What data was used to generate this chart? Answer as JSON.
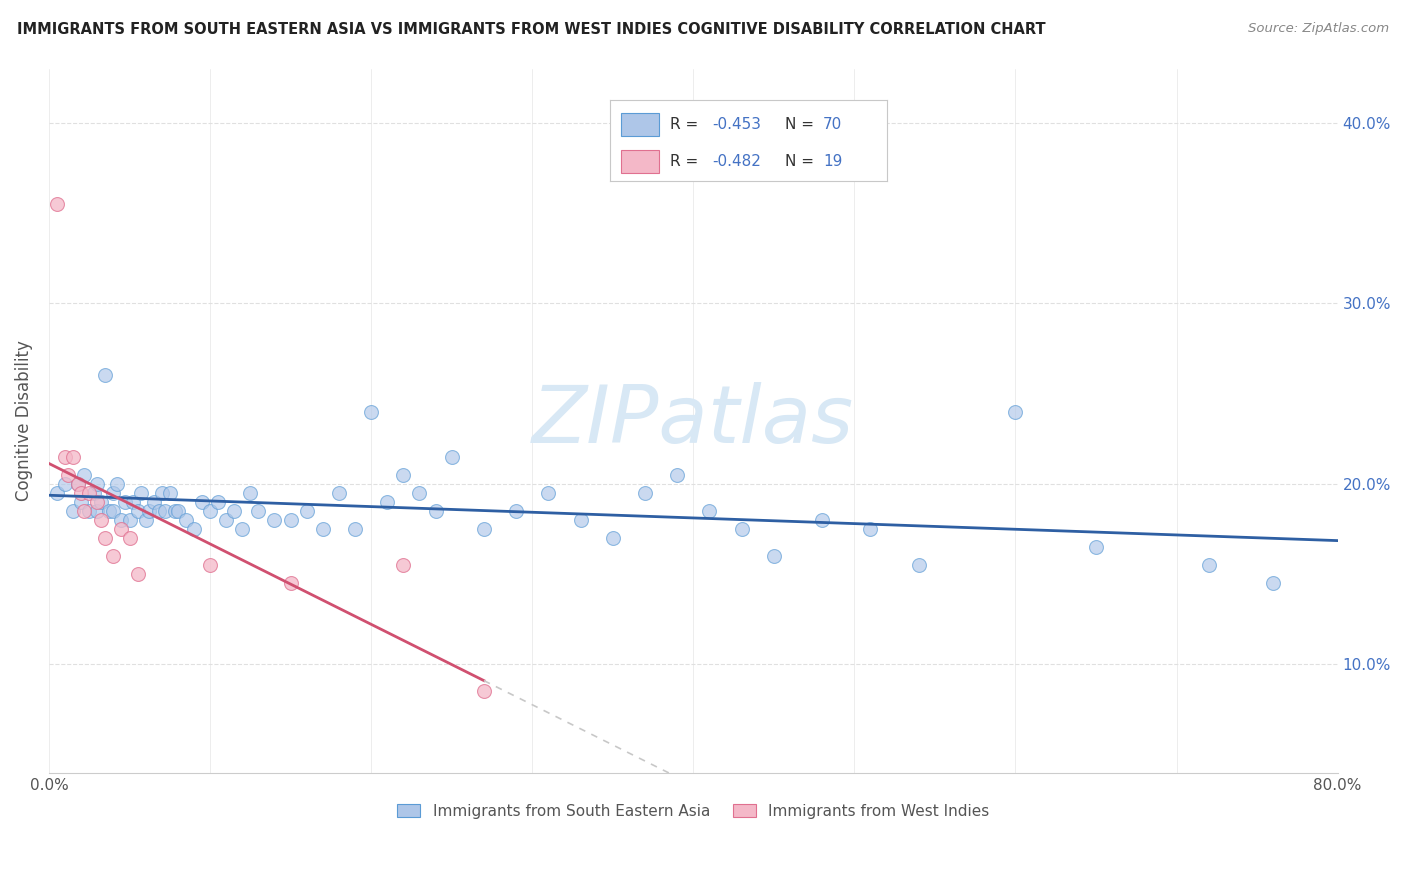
{
  "title": "IMMIGRANTS FROM SOUTH EASTERN ASIA VS IMMIGRANTS FROM WEST INDIES COGNITIVE DISABILITY CORRELATION CHART",
  "source": "Source: ZipAtlas.com",
  "ylabel": "Cognitive Disability",
  "legend1_label": "Immigrants from South Eastern Asia",
  "legend2_label": "Immigrants from West Indies",
  "legend_r1": "-0.453",
  "legend_n1": "70",
  "legend_r2": "-0.482",
  "legend_n2": "19",
  "xlim": [
    0.0,
    0.8
  ],
  "ylim": [
    0.04,
    0.43
  ],
  "xtick_positions": [
    0.0,
    0.1,
    0.2,
    0.3,
    0.4,
    0.5,
    0.6,
    0.7,
    0.8
  ],
  "ytick_positions": [
    0.1,
    0.2,
    0.3,
    0.4
  ],
  "blue_scatter_x": [
    0.005,
    0.01,
    0.015,
    0.018,
    0.02,
    0.022,
    0.025,
    0.028,
    0.03,
    0.03,
    0.032,
    0.035,
    0.037,
    0.04,
    0.04,
    0.042,
    0.045,
    0.047,
    0.05,
    0.052,
    0.055,
    0.057,
    0.06,
    0.062,
    0.065,
    0.068,
    0.07,
    0.072,
    0.075,
    0.078,
    0.08,
    0.085,
    0.09,
    0.095,
    0.1,
    0.105,
    0.11,
    0.115,
    0.12,
    0.125,
    0.13,
    0.14,
    0.15,
    0.16,
    0.17,
    0.18,
    0.19,
    0.2,
    0.21,
    0.22,
    0.23,
    0.24,
    0.25,
    0.27,
    0.29,
    0.31,
    0.33,
    0.35,
    0.37,
    0.39,
    0.41,
    0.43,
    0.45,
    0.48,
    0.51,
    0.54,
    0.6,
    0.65,
    0.72,
    0.76
  ],
  "blue_scatter_y": [
    0.195,
    0.2,
    0.185,
    0.2,
    0.19,
    0.205,
    0.185,
    0.195,
    0.185,
    0.2,
    0.19,
    0.26,
    0.185,
    0.185,
    0.195,
    0.2,
    0.18,
    0.19,
    0.18,
    0.19,
    0.185,
    0.195,
    0.18,
    0.185,
    0.19,
    0.185,
    0.195,
    0.185,
    0.195,
    0.185,
    0.185,
    0.18,
    0.175,
    0.19,
    0.185,
    0.19,
    0.18,
    0.185,
    0.175,
    0.195,
    0.185,
    0.18,
    0.18,
    0.185,
    0.175,
    0.195,
    0.175,
    0.24,
    0.19,
    0.205,
    0.195,
    0.185,
    0.215,
    0.175,
    0.185,
    0.195,
    0.18,
    0.17,
    0.195,
    0.205,
    0.185,
    0.175,
    0.16,
    0.18,
    0.175,
    0.155,
    0.24,
    0.165,
    0.155,
    0.145
  ],
  "pink_scatter_x": [
    0.005,
    0.01,
    0.012,
    0.015,
    0.018,
    0.02,
    0.022,
    0.025,
    0.03,
    0.032,
    0.035,
    0.04,
    0.045,
    0.05,
    0.055,
    0.1,
    0.15,
    0.22,
    0.27
  ],
  "pink_scatter_y": [
    0.355,
    0.215,
    0.205,
    0.215,
    0.2,
    0.195,
    0.185,
    0.195,
    0.19,
    0.18,
    0.17,
    0.16,
    0.175,
    0.17,
    0.15,
    0.155,
    0.145,
    0.155,
    0.085
  ],
  "blue_fill_color": "#aec6e8",
  "blue_edge_color": "#5b9bd5",
  "pink_fill_color": "#f4b8c8",
  "pink_edge_color": "#e07090",
  "blue_line_color": "#2e5fa3",
  "pink_line_color": "#d05070",
  "dashed_line_color": "#c8c8c8",
  "watermark_color": "#d8e8f5",
  "background_color": "#ffffff",
  "grid_color": "#e0e0e0",
  "title_color": "#222222",
  "source_color": "#888888",
  "tick_label_color": "#555555",
  "right_tick_color": "#4472C4",
  "legend_text_color": "#333333",
  "legend_value_color": "#4472C4"
}
